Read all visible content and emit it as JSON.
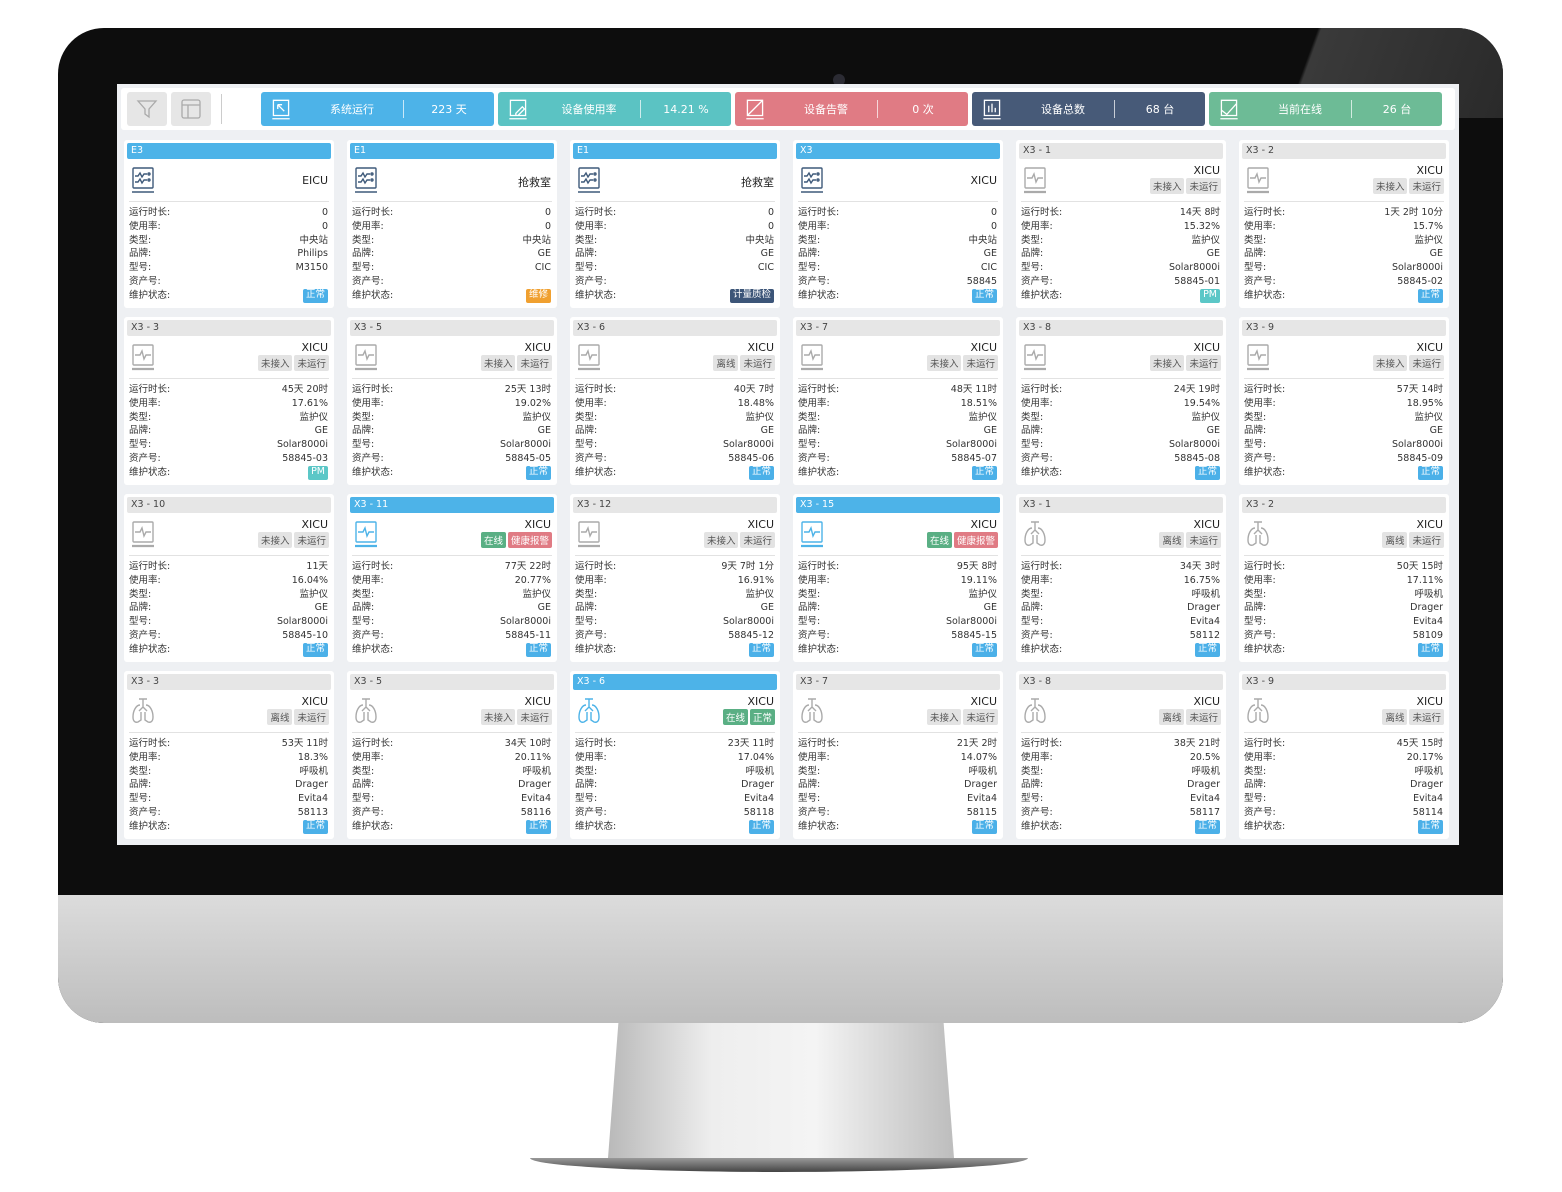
{
  "toolbar": {
    "filter_icon": "filter-icon",
    "layout_icon": "layout-icon",
    "stats": [
      {
        "label": "系统运行",
        "value": "223 天",
        "color": "#4db3e8",
        "icon": "cursor-screen-icon"
      },
      {
        "label": "设备使用率",
        "value": "14.21 %",
        "color": "#5bc3c3",
        "icon": "edit-screen-icon"
      },
      {
        "label": "设备告警",
        "value": "0 次",
        "color": "#e07b84",
        "icon": "alert-screen-icon"
      },
      {
        "label": "设备总数",
        "value": "68 台",
        "color": "#475a78",
        "icon": "bar-chart-screen-icon"
      },
      {
        "label": "当前在线",
        "value": "26 台",
        "color": "#6dbb96",
        "icon": "check-screen-icon"
      }
    ]
  },
  "field_labels": [
    "运行时长:",
    "使用率:",
    "类型:",
    "品牌:",
    "型号:",
    "资产号:",
    "维护状态:"
  ],
  "colors": {
    "active": "#4db3e8",
    "inactive_icon": "#aaaaaa",
    "central_icon": "#3f5a7a",
    "normal": "#4bb0e8",
    "repair": "#f0a030",
    "metrology": "#3c5578",
    "pm": "#5bc7c7",
    "online": "#5aaf84",
    "alarm": "#e07b84",
    "tag_grey": "#e3e3e3"
  },
  "cards": [
    {
      "title": "E3",
      "active": true,
      "icon": "central-station",
      "location": "EICU",
      "tags": [],
      "values": [
        "0",
        "0",
        "中央站",
        "Philips",
        "M3150",
        ""
      ],
      "status": {
        "label": "正常",
        "color": "#4bb0e8"
      }
    },
    {
      "title": "E1",
      "active": true,
      "icon": "central-station",
      "location": "抢救室",
      "tags": [],
      "values": [
        "0",
        "0",
        "中央站",
        "GE",
        "CIC",
        ""
      ],
      "status": {
        "label": "维修",
        "color": "#f0a030"
      }
    },
    {
      "title": "E1",
      "active": true,
      "icon": "central-station",
      "location": "抢救室",
      "tags": [],
      "values": [
        "0",
        "0",
        "中央站",
        "GE",
        "CIC",
        ""
      ],
      "status": {
        "label": "计量质检",
        "color": "#3c5578"
      }
    },
    {
      "title": "X3",
      "active": true,
      "icon": "central-station",
      "location": "XICU",
      "tags": [],
      "values": [
        "0",
        "0",
        "中央站",
        "GE",
        "CIC",
        "58845"
      ],
      "status": {
        "label": "正常",
        "color": "#4bb0e8"
      }
    },
    {
      "title": "X3 - 1",
      "active": false,
      "icon": "monitor",
      "location": "XICU",
      "tags": [
        {
          "label": "未接入"
        },
        {
          "label": "未运行"
        }
      ],
      "values": [
        "14天 8时",
        "15.32%",
        "监护仪",
        "GE",
        "Solar8000i",
        "58845-01"
      ],
      "status": {
        "label": "PM",
        "color": "#5bc7c7"
      }
    },
    {
      "title": "X3 - 2",
      "active": false,
      "icon": "monitor",
      "location": "XICU",
      "tags": [
        {
          "label": "未接入"
        },
        {
          "label": "未运行"
        }
      ],
      "values": [
        "1天 2时 10分",
        "15.7%",
        "监护仪",
        "GE",
        "Solar8000i",
        "58845-02"
      ],
      "status": {
        "label": "正常",
        "color": "#4bb0e8"
      }
    },
    {
      "title": "X3 - 3",
      "active": false,
      "icon": "monitor",
      "location": "XICU",
      "tags": [
        {
          "label": "未接入"
        },
        {
          "label": "未运行"
        }
      ],
      "values": [
        "45天 20时",
        "17.61%",
        "监护仪",
        "GE",
        "Solar8000i",
        "58845-03"
      ],
      "status": {
        "label": "PM",
        "color": "#5bc7c7"
      }
    },
    {
      "title": "X3 - 5",
      "active": false,
      "icon": "monitor",
      "location": "XICU",
      "tags": [
        {
          "label": "未接入"
        },
        {
          "label": "未运行"
        }
      ],
      "values": [
        "25天 13时",
        "19.02%",
        "监护仪",
        "GE",
        "Solar8000i",
        "58845-05"
      ],
      "status": {
        "label": "正常",
        "color": "#4bb0e8"
      }
    },
    {
      "title": "X3 - 6",
      "active": false,
      "icon": "monitor",
      "location": "XICU",
      "tags": [
        {
          "label": "离线"
        },
        {
          "label": "未运行"
        }
      ],
      "values": [
        "40天 7时",
        "18.48%",
        "监护仪",
        "GE",
        "Solar8000i",
        "58845-06"
      ],
      "status": {
        "label": "正常",
        "color": "#4bb0e8"
      }
    },
    {
      "title": "X3 - 7",
      "active": false,
      "icon": "monitor",
      "location": "XICU",
      "tags": [
        {
          "label": "未接入"
        },
        {
          "label": "未运行"
        }
      ],
      "values": [
        "48天 11时",
        "18.51%",
        "监护仪",
        "GE",
        "Solar8000i",
        "58845-07"
      ],
      "status": {
        "label": "正常",
        "color": "#4bb0e8"
      }
    },
    {
      "title": "X3 - 8",
      "active": false,
      "icon": "monitor",
      "location": "XICU",
      "tags": [
        {
          "label": "未接入"
        },
        {
          "label": "未运行"
        }
      ],
      "values": [
        "24天 19时",
        "19.54%",
        "监护仪",
        "GE",
        "Solar8000i",
        "58845-08"
      ],
      "status": {
        "label": "正常",
        "color": "#4bb0e8"
      }
    },
    {
      "title": "X3 - 9",
      "active": false,
      "icon": "monitor",
      "location": "XICU",
      "tags": [
        {
          "label": "未接入"
        },
        {
          "label": "未运行"
        }
      ],
      "values": [
        "57天 14时",
        "18.95%",
        "监护仪",
        "GE",
        "Solar8000i",
        "58845-09"
      ],
      "status": {
        "label": "正常",
        "color": "#4bb0e8"
      }
    },
    {
      "title": "X3 - 10",
      "active": false,
      "icon": "monitor",
      "location": "XICU",
      "tags": [
        {
          "label": "未接入"
        },
        {
          "label": "未运行"
        }
      ],
      "values": [
        "11天",
        "16.04%",
        "监护仪",
        "GE",
        "Solar8000i",
        "58845-10"
      ],
      "status": {
        "label": "正常",
        "color": "#4bb0e8"
      }
    },
    {
      "title": "X3 - 11",
      "active": true,
      "icon": "monitor",
      "location": "XICU",
      "tags": [
        {
          "label": "在线",
          "color": "#5aaf84"
        },
        {
          "label": "健康报警",
          "color": "#e07b84"
        }
      ],
      "values": [
        "77天 22时",
        "20.77%",
        "监护仪",
        "GE",
        "Solar8000i",
        "58845-11"
      ],
      "status": {
        "label": "正常",
        "color": "#4bb0e8"
      }
    },
    {
      "title": "X3 - 12",
      "active": false,
      "icon": "monitor",
      "location": "XICU",
      "tags": [
        {
          "label": "未接入"
        },
        {
          "label": "未运行"
        }
      ],
      "values": [
        "9天 7时 1分",
        "16.91%",
        "监护仪",
        "GE",
        "Solar8000i",
        "58845-12"
      ],
      "status": {
        "label": "正常",
        "color": "#4bb0e8"
      }
    },
    {
      "title": "X3 - 15",
      "active": true,
      "icon": "monitor",
      "location": "XICU",
      "tags": [
        {
          "label": "在线",
          "color": "#5aaf84"
        },
        {
          "label": "健康报警",
          "color": "#e07b84"
        }
      ],
      "values": [
        "95天 8时",
        "19.11%",
        "监护仪",
        "GE",
        "Solar8000i",
        "58845-15"
      ],
      "status": {
        "label": "正常",
        "color": "#4bb0e8"
      }
    },
    {
      "title": "X3 - 1",
      "active": false,
      "icon": "ventilator",
      "location": "XICU",
      "tags": [
        {
          "label": "离线"
        },
        {
          "label": "未运行"
        }
      ],
      "values": [
        "34天 3时",
        "16.75%",
        "呼吸机",
        "Drager",
        "Evita4",
        "58112"
      ],
      "status": {
        "label": "正常",
        "color": "#4bb0e8"
      }
    },
    {
      "title": "X3 - 2",
      "active": false,
      "icon": "ventilator",
      "location": "XICU",
      "tags": [
        {
          "label": "离线"
        },
        {
          "label": "未运行"
        }
      ],
      "values": [
        "50天 15时",
        "17.11%",
        "呼吸机",
        "Drager",
        "Evita4",
        "58109"
      ],
      "status": {
        "label": "正常",
        "color": "#4bb0e8"
      }
    },
    {
      "title": "X3 - 3",
      "active": false,
      "icon": "ventilator",
      "location": "XICU",
      "tags": [
        {
          "label": "离线"
        },
        {
          "label": "未运行"
        }
      ],
      "values": [
        "53天 11时",
        "18.3%",
        "呼吸机",
        "Drager",
        "Evita4",
        "58113"
      ],
      "status": {
        "label": "正常",
        "color": "#4bb0e8"
      }
    },
    {
      "title": "X3 - 5",
      "active": false,
      "icon": "ventilator",
      "location": "XICU",
      "tags": [
        {
          "label": "未接入"
        },
        {
          "label": "未运行"
        }
      ],
      "values": [
        "34天 10时",
        "20.11%",
        "呼吸机",
        "Drager",
        "Evita4",
        "58116"
      ],
      "status": {
        "label": "正常",
        "color": "#4bb0e8"
      }
    },
    {
      "title": "X3 - 6",
      "active": true,
      "icon": "ventilator",
      "location": "XICU",
      "tags": [
        {
          "label": "在线",
          "color": "#5aaf84"
        },
        {
          "label": "正常",
          "color": "#5aaf84"
        }
      ],
      "values": [
        "23天 11时",
        "17.04%",
        "呼吸机",
        "Drager",
        "Evita4",
        "58118"
      ],
      "status": {
        "label": "正常",
        "color": "#4bb0e8"
      }
    },
    {
      "title": "X3 - 7",
      "active": false,
      "icon": "ventilator",
      "location": "XICU",
      "tags": [
        {
          "label": "未接入"
        },
        {
          "label": "未运行"
        }
      ],
      "values": [
        "21天 2时",
        "14.07%",
        "呼吸机",
        "Drager",
        "Evita4",
        "58115"
      ],
      "status": {
        "label": "正常",
        "color": "#4bb0e8"
      }
    },
    {
      "title": "X3 - 8",
      "active": false,
      "icon": "ventilator",
      "location": "XICU",
      "tags": [
        {
          "label": "离线"
        },
        {
          "label": "未运行"
        }
      ],
      "values": [
        "38天 21时",
        "20.5%",
        "呼吸机",
        "Drager",
        "Evita4",
        "58117"
      ],
      "status": {
        "label": "正常",
        "color": "#4bb0e8"
      }
    },
    {
      "title": "X3 - 9",
      "active": false,
      "icon": "ventilator",
      "location": "XICU",
      "tags": [
        {
          "label": "离线"
        },
        {
          "label": "未运行"
        }
      ],
      "values": [
        "45天 15时",
        "20.17%",
        "呼吸机",
        "Drager",
        "Evita4",
        "58114"
      ],
      "status": {
        "label": "正常",
        "color": "#4bb0e8"
      }
    }
  ]
}
